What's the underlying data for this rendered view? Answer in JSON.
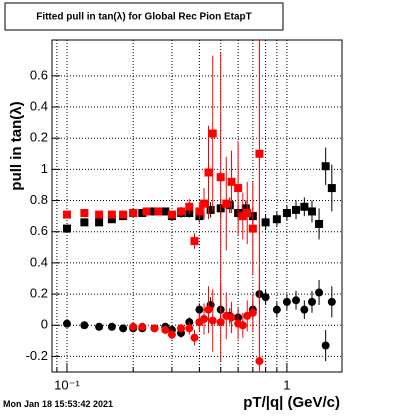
{
  "chart_data": {
    "type": "scatter",
    "title": "Fitted pull in tan(λ) for Global Rec Pion EtapT",
    "xlabel": "pT/|q| (GeV/c)",
    "ylabel": "pull in tan(λ)",
    "timestamp": "Mon Jan 18 15:53:42 2021",
    "xlog": true,
    "xlim": [
      0.0855,
      1.78
    ],
    "ylim": [
      -0.3,
      1.83
    ],
    "xticks": [
      {
        "value": 0.1,
        "label": "10⁻¹"
      },
      1
    ],
    "xgrid": [
      0.09,
      0.2,
      0.3,
      0.4,
      0.5,
      0.6,
      0.7,
      0.8,
      0.9
    ],
    "yticks": [
      -0.2,
      0,
      0.2,
      0.4,
      0.6,
      0.8,
      {
        "value": 1,
        "label": "1"
      },
      {
        "value": 1.2,
        "label": "0.2"
      },
      {
        "value": 1.4,
        "label": "0.4"
      },
      {
        "value": 1.6,
        "label": "0.6"
      }
    ],
    "grid": true,
    "series": [
      {
        "name": "black squares",
        "color": "#000000",
        "marker": "square",
        "x": [
          0.1,
          0.12,
          0.14,
          0.16,
          0.18,
          0.2,
          0.22,
          0.25,
          0.28,
          0.3,
          0.33,
          0.36,
          0.4,
          0.45,
          0.5,
          0.55,
          0.6,
          0.65,
          0.7,
          0.8,
          0.9,
          1.0,
          1.1,
          1.2,
          1.3,
          1.4,
          1.5,
          1.6
        ],
        "values": [
          0.62,
          0.66,
          0.66,
          0.68,
          0.7,
          0.72,
          0.72,
          0.73,
          0.73,
          0.7,
          0.72,
          0.72,
          0.7,
          0.74,
          0.75,
          0.77,
          0.72,
          0.75,
          0.7,
          0.66,
          0.68,
          0.72,
          0.74,
          0.76,
          0.73,
          0.65,
          1.02,
          0.88
        ],
        "errors": [
          0.02,
          0.02,
          0.02,
          0.02,
          0.02,
          0.02,
          0.02,
          0.02,
          0.02,
          0.03,
          0.03,
          0.03,
          0.04,
          0.05,
          0.06,
          0.05,
          0.05,
          0.05,
          0.06,
          0.05,
          0.05,
          0.05,
          0.06,
          0.06,
          0.07,
          0.1,
          0.12,
          0.15
        ]
      },
      {
        "name": "red squares",
        "color": "#ff0000",
        "marker": "square",
        "x": [
          0.1,
          0.12,
          0.14,
          0.16,
          0.18,
          0.2,
          0.23,
          0.26,
          0.3,
          0.33,
          0.36,
          0.38,
          0.4,
          0.42,
          0.44,
          0.46,
          0.5,
          0.53,
          0.56,
          0.6,
          0.63,
          0.66,
          0.7,
          0.75
        ],
        "values": [
          0.71,
          0.72,
          0.71,
          0.71,
          0.71,
          0.72,
          0.73,
          0.73,
          0.71,
          0.73,
          0.76,
          0.54,
          0.73,
          0.78,
          0.98,
          1.23,
          0.95,
          0.78,
          0.92,
          0.88,
          0.7,
          0.72,
          0.62,
          1.1
        ],
        "errors": [
          0.01,
          0.01,
          0.01,
          0.01,
          0.01,
          0.01,
          0.02,
          0.02,
          0.02,
          0.03,
          0.05,
          0.05,
          0.06,
          0.1,
          0.3,
          0.5,
          0.8,
          0.3,
          0.2,
          0.3,
          0.15,
          0.2,
          0.3,
          0.9
        ]
      },
      {
        "name": "black circles",
        "color": "#000000",
        "marker": "circle",
        "x": [
          0.1,
          0.12,
          0.14,
          0.16,
          0.18,
          0.2,
          0.22,
          0.25,
          0.28,
          0.3,
          0.33,
          0.36,
          0.4,
          0.45,
          0.5,
          0.55,
          0.6,
          0.7,
          0.75,
          0.8,
          0.9,
          1.0,
          1.1,
          1.2,
          1.3,
          1.4,
          1.5,
          1.6
        ],
        "values": [
          0.01,
          0,
          -0.01,
          -0.01,
          -0.02,
          -0.02,
          -0.02,
          -0.02,
          -0.01,
          -0.03,
          -0.05,
          0.02,
          0.1,
          0.13,
          0.1,
          0.06,
          0.05,
          0.1,
          0.2,
          0.18,
          0.1,
          0.15,
          0.16,
          0.1,
          0.15,
          0.21,
          -0.13,
          0.15
        ],
        "errors": [
          0.01,
          0.01,
          0.01,
          0.01,
          0.01,
          0.01,
          0.01,
          0.01,
          0.02,
          0.02,
          0.03,
          0.03,
          0.04,
          0.05,
          0.05,
          0.05,
          0.05,
          0.06,
          0.06,
          0.05,
          0.05,
          0.05,
          0.06,
          0.06,
          0.07,
          0.08,
          0.1,
          0.1
        ]
      },
      {
        "name": "red circles",
        "color": "#ff0000",
        "marker": "circle",
        "x": [
          0.2,
          0.22,
          0.25,
          0.28,
          0.3,
          0.33,
          0.36,
          0.38,
          0.4,
          0.42,
          0.44,
          0.46,
          0.5,
          0.53,
          0.56,
          0.6,
          0.63,
          0.66,
          0.7,
          0.75
        ],
        "values": [
          -0.01,
          -0.01,
          -0.02,
          -0.03,
          -0.06,
          -0.02,
          -0.02,
          -0.08,
          0.02,
          0.04,
          0.1,
          0.03,
          0.02,
          0.06,
          0.05,
          0.01,
          0,
          0.06,
          0.08,
          -0.23
        ],
        "errors": [
          0.01,
          0.01,
          0.02,
          0.02,
          0.03,
          0.03,
          0.04,
          0.05,
          0.06,
          0.1,
          0.15,
          0.2,
          0.25,
          0.15,
          0.1,
          0.1,
          0.08,
          0.1,
          0.12,
          0.6
        ]
      }
    ]
  }
}
